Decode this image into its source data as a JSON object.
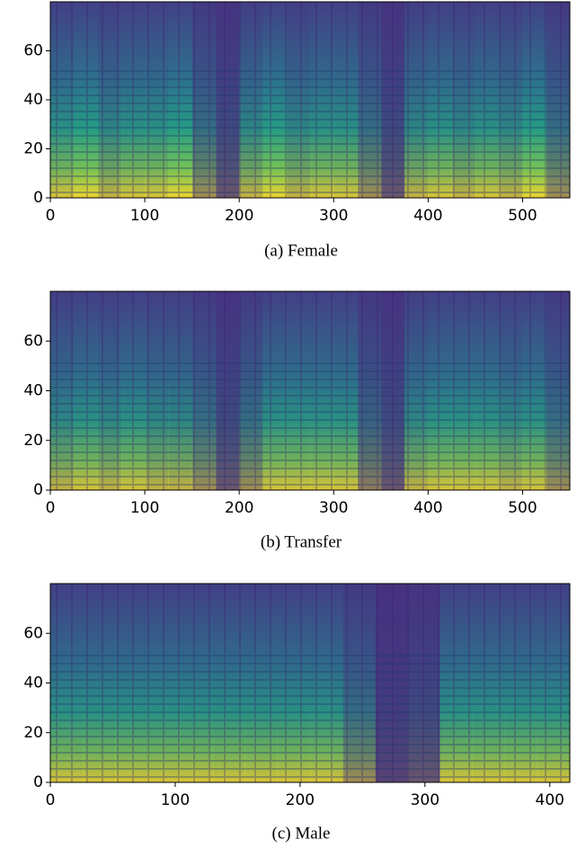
{
  "chart_data": [
    {
      "type": "heatmap",
      "caption": "(a) Female",
      "xlim": [
        0,
        550
      ],
      "ylim": [
        0,
        80
      ],
      "xticks": [
        0,
        100,
        200,
        300,
        400,
        500
      ],
      "yticks": [
        0,
        20,
        40,
        60
      ],
      "values": [
        0.8,
        0.9,
        0.7,
        0.8,
        0.8,
        0.9,
        0.5,
        0.2,
        0.7,
        0.9,
        0.7,
        0.8,
        0.8,
        0.5,
        0.2,
        0.7,
        0.8,
        0.7,
        0.8,
        0.7,
        0.9,
        0.5
      ]
    },
    {
      "type": "heatmap",
      "caption": "(b) Transfer",
      "xlim": [
        0,
        550
      ],
      "ylim": [
        0,
        80
      ],
      "xticks": [
        0,
        100,
        200,
        300,
        400,
        500
      ],
      "yticks": [
        0,
        20,
        40,
        60
      ],
      "values": [
        0.7,
        0.8,
        0.7,
        0.8,
        0.7,
        0.7,
        0.5,
        0.2,
        0.5,
        0.8,
        0.8,
        0.8,
        0.8,
        0.4,
        0.2,
        0.7,
        0.8,
        0.8,
        0.8,
        0.7,
        0.8,
        0.5
      ]
    },
    {
      "type": "heatmap",
      "caption": "(c) Male",
      "xlim": [
        0,
        416
      ],
      "ylim": [
        0,
        80
      ],
      "xticks": [
        0,
        100,
        200,
        300,
        400
      ],
      "yticks": [
        0,
        20,
        40,
        60
      ],
      "values": [
        0.8,
        0.8,
        0.8,
        0.8,
        0.8,
        0.8,
        0.8,
        0.8,
        0.8,
        0.5,
        0.1,
        0.2,
        0.8,
        0.8,
        0.8,
        0.8
      ]
    }
  ]
}
